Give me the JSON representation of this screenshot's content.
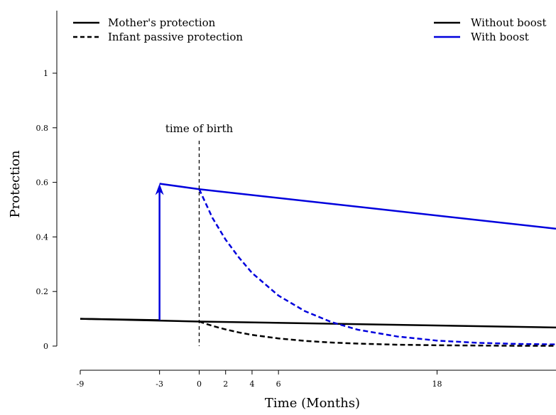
{
  "chart_data": {
    "type": "line",
    "xlabel": "Time (Months)",
    "ylabel": "Protection",
    "x_ticks": [
      -9,
      -3,
      0,
      2,
      4,
      6,
      18
    ],
    "y_ticks": [
      0,
      0.2,
      0.4,
      0.6,
      0.8,
      1
    ],
    "xlim": [
      -9,
      27
    ],
    "ylim": [
      0,
      1.2
    ],
    "grid": false,
    "annotations": {
      "birth_label": "time of birth",
      "birth_x": 0,
      "boost_time": -3,
      "boost_from": 0.095,
      "boost_to": 0.595
    },
    "legend_style": {
      "solid_label": "Mother's protection",
      "dashed_label": "Infant passive protection"
    },
    "legend_color": {
      "black_label": "Without boost",
      "blue_label": "With boost"
    },
    "colors": {
      "black": "#000000",
      "blue": "#0000dd"
    },
    "series": [
      {
        "id": "mother-no-boost",
        "color": "black",
        "dash": false,
        "x": [
          -9,
          0,
          27
        ],
        "y": [
          0.1,
          0.09,
          0.068
        ]
      },
      {
        "id": "mother-boost-pre",
        "color": "black",
        "dash": false,
        "x": [
          -9,
          -3
        ],
        "y": [
          0.1,
          0.095
        ]
      },
      {
        "id": "mother-boost",
        "color": "blue",
        "dash": false,
        "x": [
          -3,
          0,
          27
        ],
        "y": [
          0.595,
          0.575,
          0.43
        ]
      },
      {
        "id": "infant-boost",
        "color": "blue",
        "dash": true,
        "x": [
          0,
          1,
          2,
          3,
          4,
          6,
          8,
          10,
          12,
          15,
          18,
          21,
          24,
          27
        ],
        "y": [
          0.575,
          0.47,
          0.39,
          0.325,
          0.268,
          0.185,
          0.128,
          0.088,
          0.06,
          0.035,
          0.02,
          0.012,
          0.008,
          0.006
        ]
      },
      {
        "id": "infant-no-boost",
        "color": "black",
        "dash": true,
        "x": [
          0,
          1,
          2,
          3,
          4,
          6,
          8,
          10,
          12,
          15,
          18,
          21,
          24,
          27
        ],
        "y": [
          0.09,
          0.074,
          0.061,
          0.05,
          0.041,
          0.028,
          0.019,
          0.013,
          0.009,
          0.005,
          0.003,
          0.002,
          0.001,
          0.001
        ]
      }
    ]
  }
}
